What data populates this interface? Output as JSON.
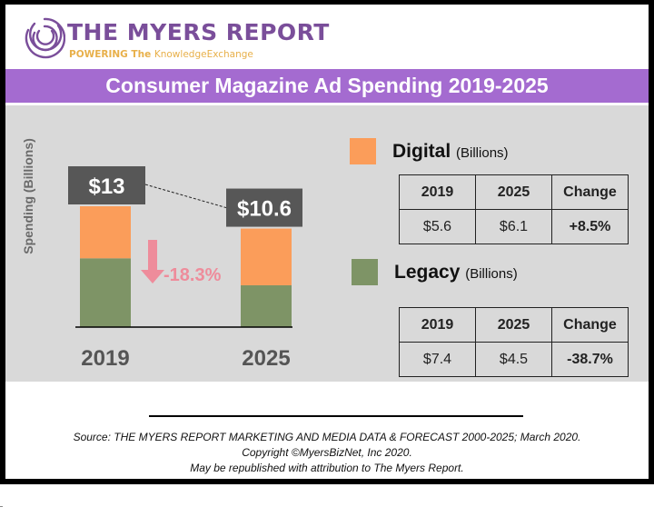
{
  "brand": {
    "name": "THE MYERS REPORT",
    "tagline_bold": "POWERING The ",
    "tagline_rest": "KnowledgeExchange"
  },
  "title": "Consumer Magazine Ad Spending 2019-2025",
  "colors": {
    "digital": "#fb9d5a",
    "legacy": "#7e9466",
    "total_label_bg": "#575757",
    "band": "#a46bd0",
    "positive": "#3ea95e",
    "negative": "#ee8c9b"
  },
  "chart_data": {
    "type": "bar",
    "stacked": true,
    "title": "Consumer Magazine Ad Spending 2019-2025",
    "xlabel": "",
    "ylabel": "Spending (Billions)",
    "categories": [
      "2019",
      "2025"
    ],
    "series": [
      {
        "name": "Legacy",
        "values": [
          7.4,
          4.5
        ]
      },
      {
        "name": "Digital",
        "values": [
          5.6,
          6.1
        ]
      }
    ],
    "totals": [
      13,
      10.6
    ],
    "total_labels": [
      "$13",
      "$10.6"
    ],
    "annotation": {
      "text": "-18.3%",
      "direction": "down"
    },
    "ylim": [
      0,
      13
    ],
    "grid": false,
    "legend": "right"
  },
  "legend": {
    "digital": {
      "label": "Digital",
      "unit": "(Billions)"
    },
    "legacy": {
      "label": "Legacy",
      "unit": "(Billions)"
    }
  },
  "tables": {
    "digital": {
      "headers": [
        "2019",
        "2025",
        "Change"
      ],
      "values": [
        "$5.6",
        "$6.1",
        "+8.5%"
      ]
    },
    "legacy": {
      "headers": [
        "2019",
        "2025",
        "Change"
      ],
      "values": [
        "$7.4",
        "$4.5",
        "-38.7%"
      ]
    }
  },
  "footer": {
    "source": "Source: THE MYERS REPORT MARKETING AND MEDIA DATA & FORECAST 2000-2025; March 2020.",
    "copyright": "Copyright ©MyersBizNet, Inc 2020.",
    "attribution": "May be republished with attribution to The Myers Report."
  }
}
